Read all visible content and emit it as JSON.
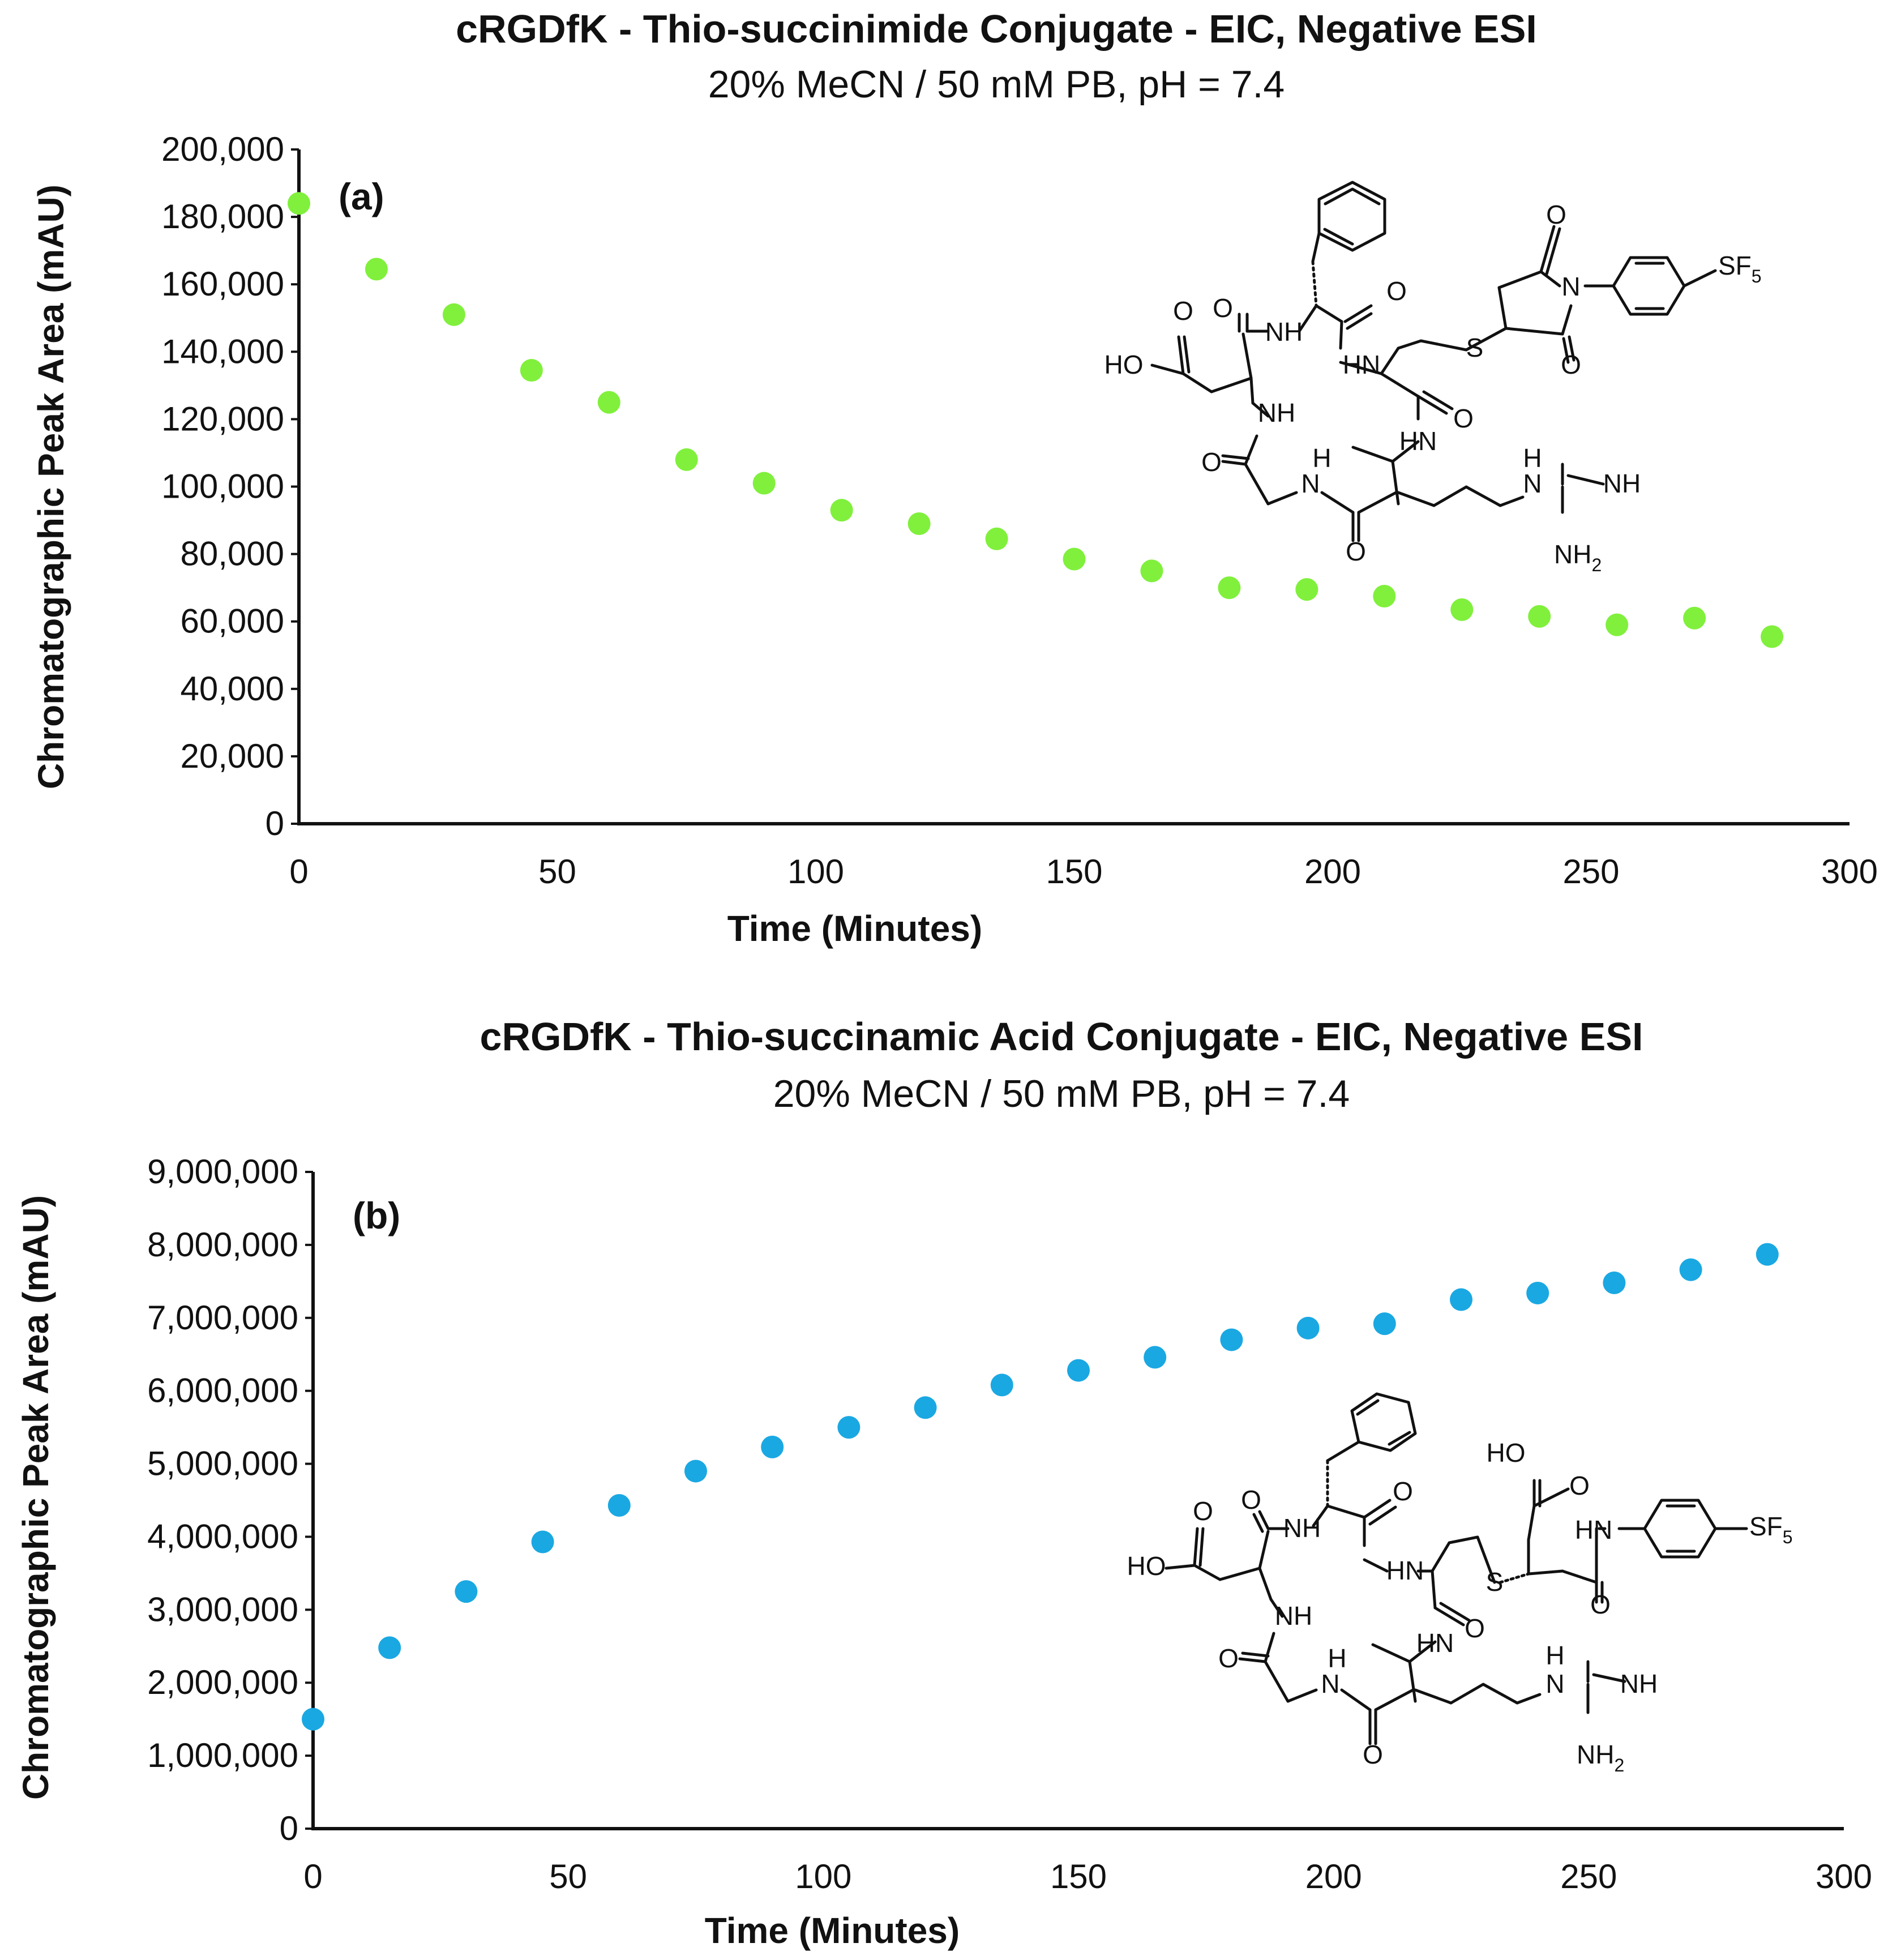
{
  "chart_data": [
    {
      "type": "scatter",
      "panel_label": "(a)",
      "title": "cRGDfK - Thio-succinimide Conjugate - EIC, Negative ESI",
      "subtitle": "20% MeCN / 50 mM PB, pH = 7.4",
      "xlabel": "Time (Minutes)",
      "ylabel": "Chromatographic Peak Area (mAU)",
      "xlim": [
        0,
        300
      ],
      "ylim": [
        0,
        200000
      ],
      "x_ticks": [
        0,
        50,
        100,
        150,
        200,
        250,
        300
      ],
      "x_tick_labels": [
        "0",
        "50",
        "100",
        "150",
        "200",
        "250",
        "300"
      ],
      "y_ticks": [
        0,
        20000,
        40000,
        60000,
        80000,
        100000,
        120000,
        140000,
        160000,
        180000,
        200000
      ],
      "y_tick_labels": [
        "0",
        "20,000",
        "40,000",
        "60,000",
        "80,000",
        "100,000",
        "120,000",
        "140,000",
        "160,000",
        "180,000",
        "200,000"
      ],
      "color": "#80f03c",
      "series": [
        {
          "name": "Thio-succinimide conjugate",
          "x": [
            0,
            15,
            30,
            45,
            60,
            75,
            90,
            105,
            120,
            135,
            150,
            165,
            180,
            195,
            210,
            225,
            240,
            255,
            270,
            285
          ],
          "y": [
            184000,
            164500,
            151000,
            134500,
            125000,
            108000,
            101000,
            93000,
            89000,
            84500,
            78500,
            75000,
            70000,
            69500,
            67500,
            63500,
            61500,
            59000,
            61000,
            55500
          ]
        }
      ]
    },
    {
      "type": "scatter",
      "panel_label": "(b)",
      "title": "cRGDfK - Thio-succinamic Acid Conjugate - EIC, Negative ESI",
      "subtitle": "20% MeCN / 50 mM PB, pH = 7.4",
      "xlabel": "Time (Minutes)",
      "ylabel": "Chromatographic Peak Area (mAU)",
      "xlim": [
        0,
        300
      ],
      "ylim": [
        0,
        9000000
      ],
      "x_ticks": [
        0,
        50,
        100,
        150,
        200,
        250,
        300
      ],
      "x_tick_labels": [
        "0",
        "50",
        "100",
        "150",
        "200",
        "250",
        "300"
      ],
      "y_ticks": [
        0,
        1000000,
        2000000,
        3000000,
        4000000,
        5000000,
        6000000,
        7000000,
        8000000,
        9000000
      ],
      "y_tick_labels": [
        "0",
        "1,000,000",
        "2,000,000",
        "3,000,000",
        "4,000,000",
        "5,000,000",
        "6,000,000",
        "7,000,000",
        "8,000,000",
        "9,000,000"
      ],
      "color": "#1aa8e2",
      "series": [
        {
          "name": "Thio-succinamic acid conjugate",
          "x": [
            0,
            15,
            30,
            45,
            60,
            75,
            90,
            105,
            120,
            135,
            150,
            165,
            180,
            195,
            210,
            225,
            240,
            255,
            270,
            285
          ],
          "y": [
            1500000,
            2480000,
            3250000,
            3930000,
            4430000,
            4900000,
            5230000,
            5500000,
            5770000,
            6080000,
            6280000,
            6460000,
            6700000,
            6860000,
            6920000,
            7250000,
            7340000,
            7480000,
            7660000,
            7870000
          ]
        }
      ]
    }
  ],
  "structures": {
    "a": {
      "benzyl": "",
      "labels": {
        "o_top_ring": "O",
        "n_imide": "N",
        "o_bottom_ring": "O",
        "sf5": "SF",
        "sf5_sub": "5",
        "s_link": "S",
        "o_acid": "O",
        "ho": "HO",
        "o_asp_amide": "O",
        "nh_asp": "NH",
        "o_phe": "O",
        "hn_cys": "HN",
        "o_cys": "O",
        "nh_gly": "NH",
        "hn_arg": "HN",
        "o_gly": "O",
        "h_gly_n": "H",
        "n_gly": "N",
        "o_arg": "O",
        "h_guan": "H",
        "n_guan": "N",
        "nh_guan": "NH",
        "nh2": "NH",
        "nh2_sub": "2"
      }
    },
    "b": {
      "labels": {
        "ho_top": "HO",
        "o_acid_top": "O",
        "hn_anilide": "HN",
        "sf5": "SF",
        "sf5_sub": "5",
        "s_link": "S",
        "o_anilide": "O",
        "o_acid": "O",
        "ho": "HO",
        "o_asp_amide": "O",
        "nh_asp": "NH",
        "o_phe": "O",
        "hn_cys": "HN",
        "o_cys": "O",
        "nh_gly": "NH",
        "hn_arg": "HN",
        "o_gly": "O",
        "h_gly_n": "H",
        "n_gly": "N",
        "o_arg": "O",
        "h_guan": "H",
        "n_guan": "N",
        "nh_guan": "NH",
        "nh2": "NH",
        "nh2_sub": "2"
      }
    }
  }
}
